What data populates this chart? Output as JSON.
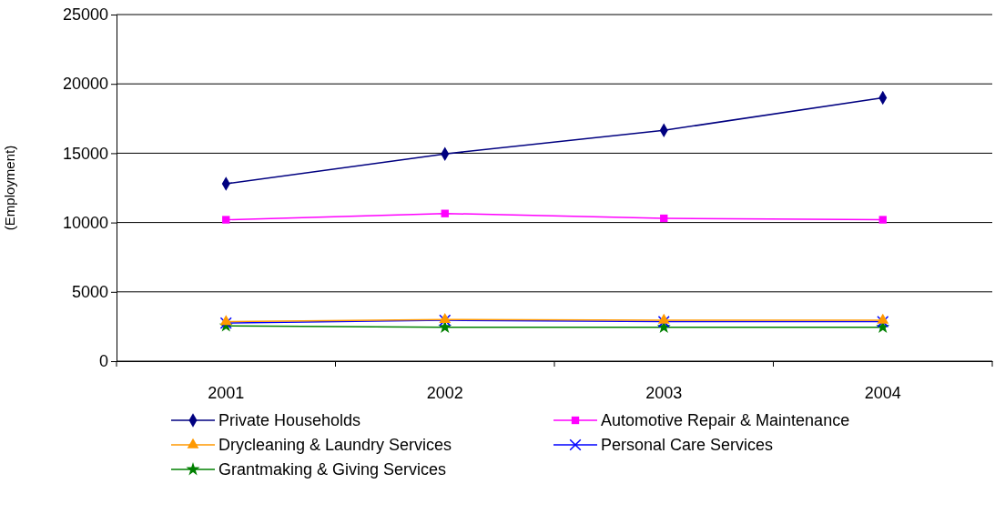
{
  "chart_data": {
    "type": "line",
    "ylabel": "(Employment)",
    "categories": [
      "2001",
      "2002",
      "2003",
      "2004"
    ],
    "ylim": [
      0,
      25000
    ],
    "yticks": [
      0,
      5000,
      10000,
      15000,
      20000,
      25000
    ],
    "grid": "y",
    "legend": "bottom",
    "series": [
      {
        "name": "Private Households",
        "color": "#000080",
        "marker": "diamond",
        "values": [
          12800,
          14950,
          16650,
          19000
        ]
      },
      {
        "name": "Automotive Repair & Maintenance",
        "color": "#ff00ff",
        "marker": "square",
        "values": [
          10200,
          10650,
          10300,
          10200
        ]
      },
      {
        "name": "Drycleaning & Laundry Services",
        "color": "#ff9900",
        "marker": "triangle",
        "values": [
          2850,
          3000,
          2950,
          2950
        ]
      },
      {
        "name": "Personal Care Services",
        "color": "#0000ff",
        "marker": "cross",
        "values": [
          2750,
          2950,
          2850,
          2850
        ]
      },
      {
        "name": "Grantmaking & Giving Services",
        "color": "#008000",
        "marker": "star",
        "values": [
          2550,
          2450,
          2450,
          2450
        ]
      }
    ]
  }
}
